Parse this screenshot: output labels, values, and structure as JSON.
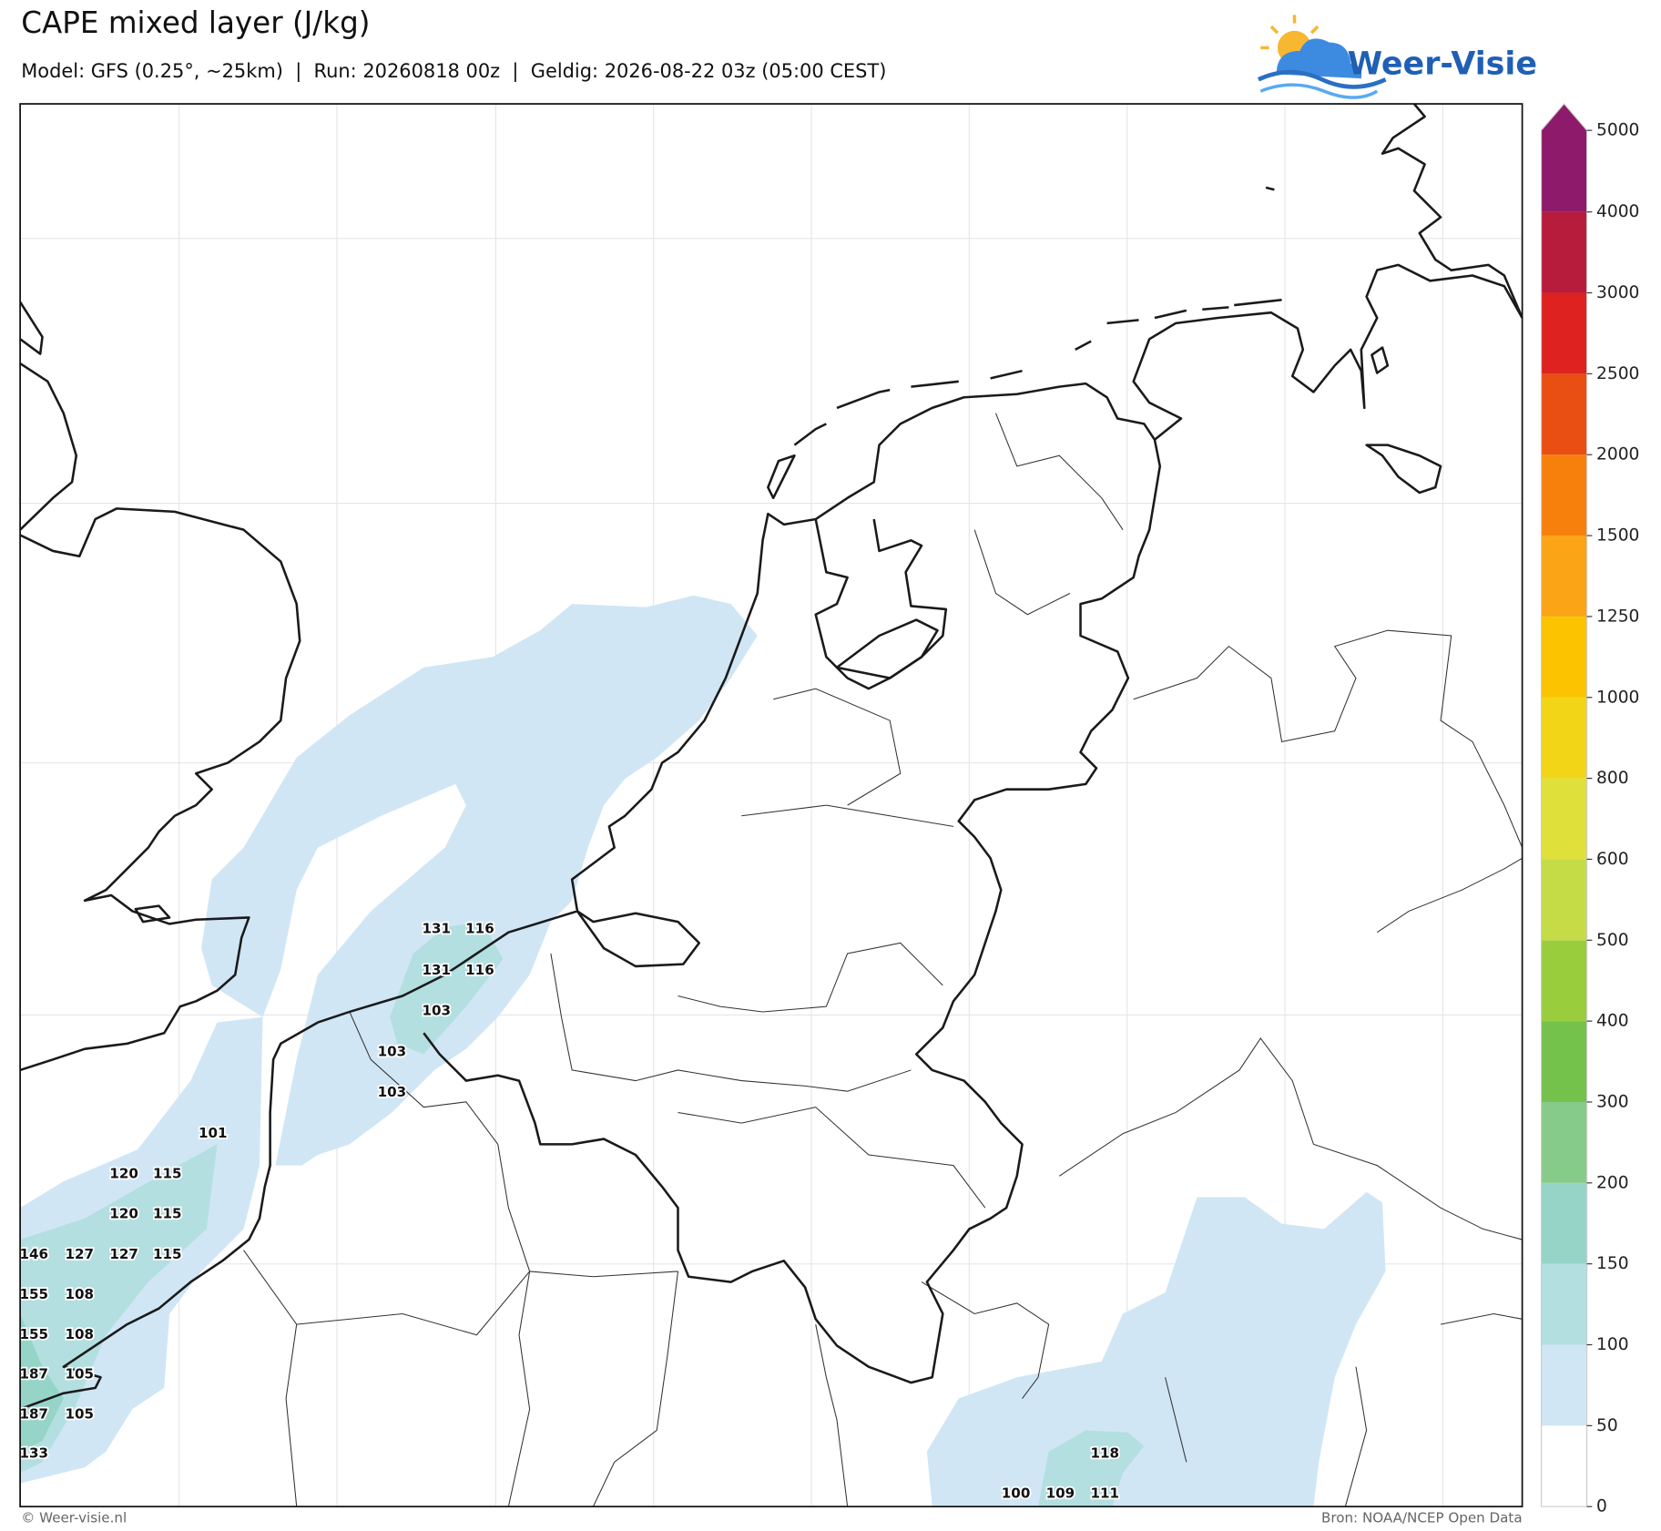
{
  "title": "CAPE mixed layer (J/kg)",
  "subtitle": "Model: GFS (0.25°, ~25km)  |  Run: 20260818 00z  |  Geldig: 2026-08-22 03z (05:00 CEST)",
  "logo": "Weer-Visie",
  "map": {
    "grid_labels": [
      131,
      116,
      131,
      116,
      103,
      103,
      103,
      101,
      120,
      115,
      120,
      115,
      146,
      127,
      127,
      115,
      155,
      108,
      155,
      108,
      187,
      105,
      187,
      105,
      133,
      118,
      100,
      109,
      111
    ],
    "colorbar": {
      "ticks": [
        0,
        50,
        100,
        150,
        200,
        300,
        400,
        500,
        600,
        800,
        1000,
        1250,
        1500,
        2000,
        2500,
        3000,
        4000,
        5000
      ],
      "colors": [
        "#ffffff",
        "#d0e6f5",
        "#b3dfe0",
        "#96d4c8",
        "#87cb8a",
        "#74c14c",
        "#9acd3c",
        "#c5dc47",
        "#e0e03a",
        "#f2d516",
        "#fbc300",
        "#fba416",
        "#f7800c",
        "#e94e12",
        "#dd2220",
        "#b71c3c",
        "#8d1a6a"
      ]
    }
  },
  "footer": {
    "credit": "© Weer-visie.nl",
    "source": "Bron: NOAA/NCEP Open Data"
  }
}
